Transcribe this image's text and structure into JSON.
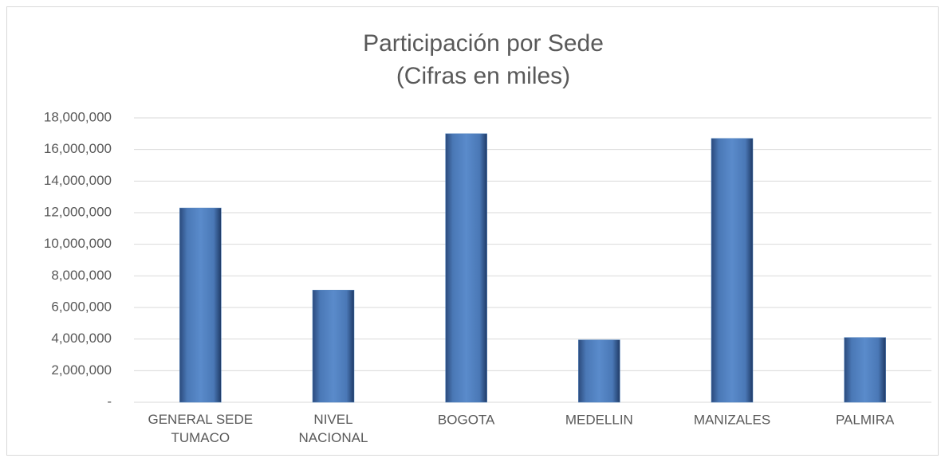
{
  "chart_data": {
    "type": "bar",
    "title": "Participación por Sede",
    "subtitle": "(Cifras en miles)",
    "categories": [
      "GENERAL SEDE TUMACO",
      "NIVEL NACIONAL",
      "BOGOTA",
      "MEDELLIN",
      "MANIZALES",
      "PALMIRA"
    ],
    "values": [
      12300000,
      7100000,
      17000000,
      3950000,
      16700000,
      4100000
    ],
    "color": "#4f81bd",
    "ylim": [
      0,
      18000000
    ],
    "yticks": [
      {
        "value": 0,
        "label": "-"
      },
      {
        "value": 2000000,
        "label": "2,000,000"
      },
      {
        "value": 4000000,
        "label": "4,000,000"
      },
      {
        "value": 6000000,
        "label": "6,000,000"
      },
      {
        "value": 8000000,
        "label": "8,000,000"
      },
      {
        "value": 10000000,
        "label": "10,000,000"
      },
      {
        "value": 12000000,
        "label": "12,000,000"
      },
      {
        "value": 14000000,
        "label": "14,000,000"
      },
      {
        "value": 16000000,
        "label": "16,000,000"
      },
      {
        "value": 18000000,
        "label": "18,000,000"
      }
    ],
    "grid": true
  }
}
